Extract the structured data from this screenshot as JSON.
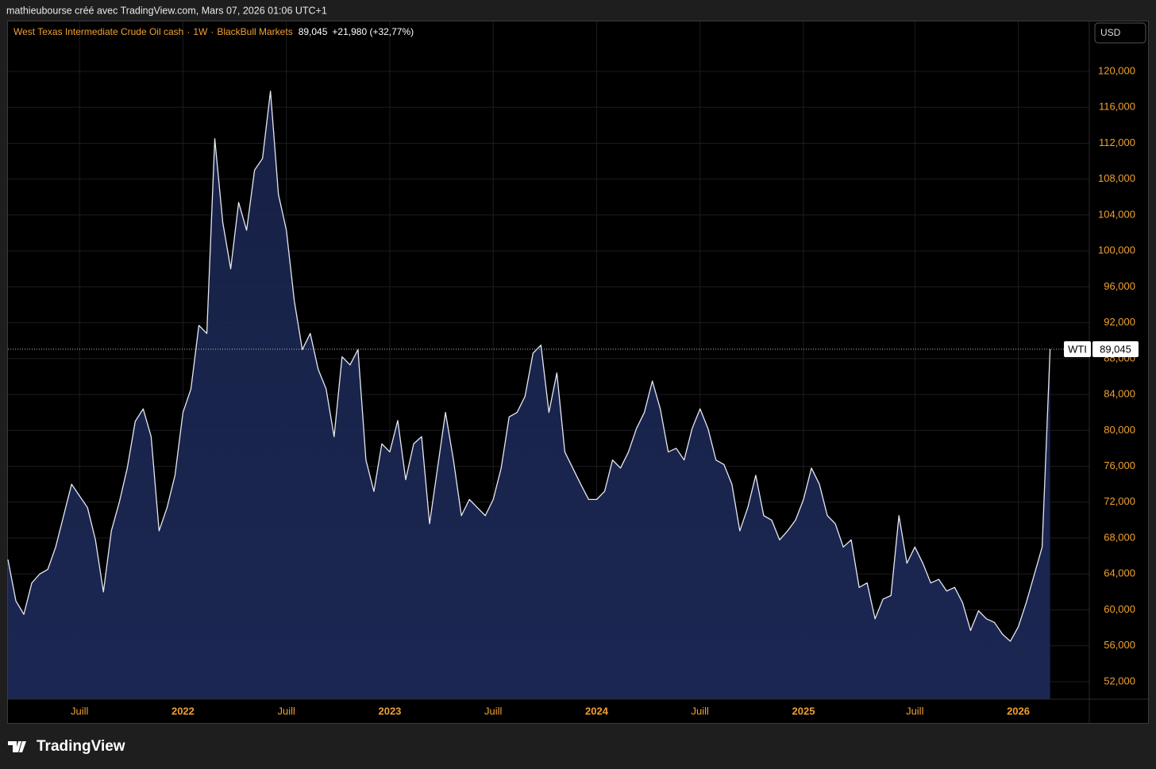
{
  "header": {
    "caption": "mathieubourse créé avec TradingView.com, Mars 07, 2026 01:06 UTC+1"
  },
  "footer": {
    "brand": "TradingView"
  },
  "chart_data": {
    "type": "area",
    "title": "West Texas Intermediate Crude Oil cash",
    "interval": "1W",
    "source": "BlackBull Markets",
    "last_label": "89,045",
    "change": "+21,980 (+32,77%)",
    "symbol": "WTI",
    "currency": "USD",
    "line_color": "#e6e8f2",
    "fill_color": "#1b2752",
    "tick_color": "#f0a030",
    "grid": true,
    "categories": [
      null,
      null,
      null,
      null,
      null,
      null,
      null,
      null,
      null,
      "Juill",
      null,
      null,
      null,
      null,
      null,
      null,
      null,
      null,
      null,
      null,
      null,
      null,
      "2022",
      null,
      null,
      null,
      null,
      null,
      null,
      null,
      null,
      null,
      null,
      null,
      null,
      "Juill",
      null,
      null,
      null,
      null,
      null,
      null,
      null,
      null,
      null,
      null,
      null,
      null,
      "2023",
      null,
      null,
      null,
      null,
      null,
      null,
      null,
      null,
      null,
      null,
      null,
      null,
      "Juill",
      null,
      null,
      null,
      null,
      null,
      null,
      null,
      null,
      null,
      null,
      null,
      null,
      "2024",
      null,
      null,
      null,
      null,
      null,
      null,
      null,
      null,
      null,
      null,
      null,
      null,
      "Juill",
      null,
      null,
      null,
      null,
      null,
      null,
      null,
      null,
      null,
      null,
      null,
      null,
      "2025",
      null,
      null,
      null,
      null,
      null,
      null,
      null,
      null,
      null,
      null,
      null,
      null,
      null,
      "Juill",
      null,
      null,
      null,
      null,
      null,
      null,
      null,
      null,
      null,
      null,
      null,
      null,
      "2026",
      null,
      null,
      null,
      null
    ],
    "values": [
      65600,
      61000,
      59500,
      63000,
      64000,
      64500,
      67000,
      70500,
      74000,
      72700,
      71400,
      67800,
      62000,
      68800,
      72000,
      75800,
      81000,
      82400,
      79300,
      68800,
      71400,
      75000,
      82000,
      84600,
      91700,
      90800,
      112500,
      103200,
      98000,
      105400,
      102300,
      109000,
      110300,
      117800,
      106300,
      102300,
      94400,
      89000,
      90800,
      86800,
      84600,
      79300,
      88200,
      87300,
      89000,
      76700,
      73200,
      78500,
      77600,
      81100,
      74500,
      78500,
      79300,
      69600,
      75800,
      82000,
      76700,
      70500,
      72300,
      71400,
      70500,
      72300,
      75800,
      81500,
      82000,
      83800,
      88600,
      89500,
      82000,
      86400,
      77600,
      75800,
      74000,
      72300,
      72300,
      73200,
      76700,
      75800,
      77600,
      80200,
      82000,
      85500,
      82400,
      77600,
      78000,
      76700,
      80200,
      82400,
      80200,
      76700,
      76200,
      74000,
      68800,
      71400,
      75000,
      70500,
      70000,
      67800,
      68800,
      70000,
      72300,
      75800,
      74000,
      70500,
      69600,
      67000,
      67800,
      62500,
      63000,
      59000,
      61200,
      61600,
      70500,
      65200,
      67000,
      65200,
      63000,
      63400,
      62100,
      62500,
      60800,
      57700,
      59900,
      59000,
      58600,
      57300,
      56500,
      58100,
      60800,
      63900,
      67000,
      89045
    ],
    "ylim": [
      50050,
      125570
    ],
    "yticks": [
      {
        "value": 52000,
        "label": "52,000"
      },
      {
        "value": 56000,
        "label": "56,000"
      },
      {
        "value": 60000,
        "label": "60,000"
      },
      {
        "value": 64000,
        "label": "64,000"
      },
      {
        "value": 68000,
        "label": "68,000"
      },
      {
        "value": 72000,
        "label": "72,000"
      },
      {
        "value": 76000,
        "label": "76,000"
      },
      {
        "value": 80000,
        "label": "80,000"
      },
      {
        "value": 84000,
        "label": "84,000"
      },
      {
        "value": 88000,
        "label": "88,000"
      },
      {
        "value": 92000,
        "label": "92,000"
      },
      {
        "value": 96000,
        "label": "96,000"
      },
      {
        "value": 100000,
        "label": "100,000"
      },
      {
        "value": 104000,
        "label": "104,000"
      },
      {
        "value": 108000,
        "label": "108,000"
      },
      {
        "value": 112000,
        "label": "112,000"
      },
      {
        "value": 116000,
        "label": "116,000"
      },
      {
        "value": 120000,
        "label": "120,000"
      }
    ]
  }
}
